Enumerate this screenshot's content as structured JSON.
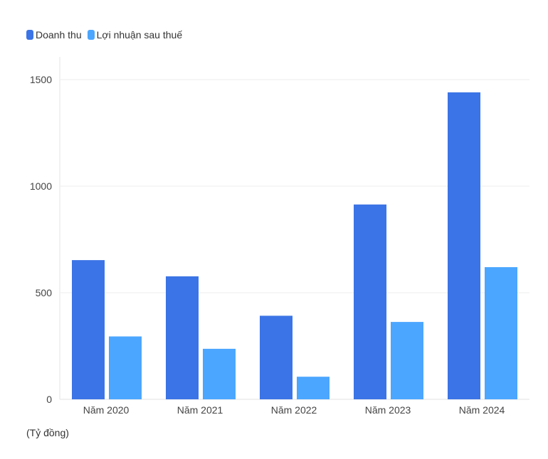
{
  "legend": {
    "items": [
      {
        "label": "Doanh thu",
        "color": "#3b74e6"
      },
      {
        "label": "Lợi nhuận sau thuế",
        "color": "#4ba6ff"
      }
    ]
  },
  "unit_note": "(Tỷ đồng)",
  "chart_data": {
    "type": "bar",
    "categories": [
      "Năm 2020",
      "Năm 2021",
      "Năm 2022",
      "Năm 2023",
      "Năm 2024"
    ],
    "series": [
      {
        "name": "Doanh thu",
        "color": "#3b74e6",
        "values": [
          653,
          577,
          392,
          914,
          1440
        ]
      },
      {
        "name": "Lợi nhuận sau thuế",
        "color": "#4ba6ff",
        "values": [
          295,
          237,
          106,
          363,
          620
        ]
      }
    ],
    "yticks": [
      "0",
      "500",
      "1000",
      "1500"
    ],
    "ylim": [
      0,
      1500
    ],
    "grid": true
  }
}
